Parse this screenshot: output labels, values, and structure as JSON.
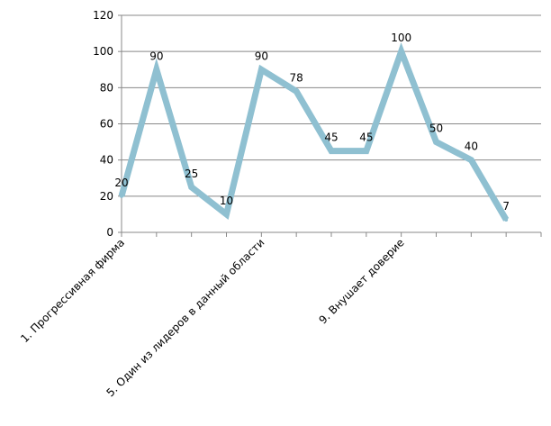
{
  "chart_data": {
    "type": "line",
    "title": "",
    "xlabel": "",
    "ylabel": "",
    "ylim": [
      0,
      120
    ],
    "yticks": [
      0,
      20,
      40,
      60,
      80,
      100,
      120
    ],
    "grid": true,
    "legend": "none",
    "categories": [
      "1. Прогрессивная фирма",
      "",
      "",
      "",
      "5. Один из лидеров в данный области",
      "",
      "",
      "",
      "9. Внушает доверие",
      "",
      "",
      ""
    ],
    "series": [
      {
        "values": [
          20,
          90,
          25,
          10,
          90,
          78,
          45,
          45,
          100,
          50,
          40,
          7
        ]
      }
    ],
    "colors": {
      "line": "#8fc0d1",
      "grid": "#888888",
      "axis": "#888888"
    }
  }
}
